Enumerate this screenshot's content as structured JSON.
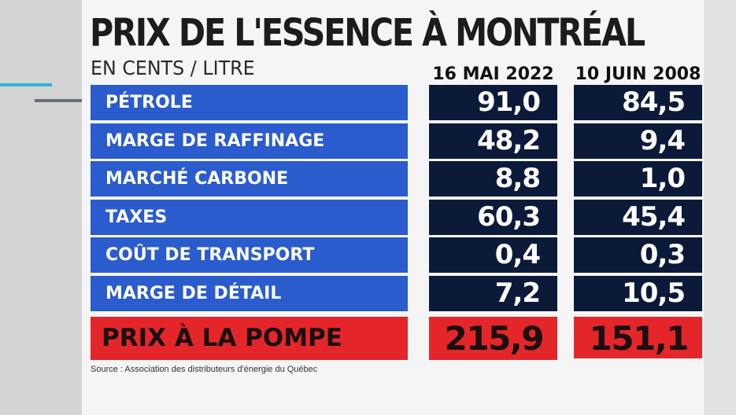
{
  "chart_data": {
    "type": "table",
    "title": "PRIX DE L'ESSENCE À MONTRÉAL",
    "subtitle": "EN CENTS / LITRE",
    "columns": [
      "16 MAI 2022",
      "10 JUIN 2008"
    ],
    "rows": [
      {
        "label": "PÉTROLE",
        "values": [
          "91,0",
          "84,5"
        ]
      },
      {
        "label": "MARGE DE RAFFINAGE",
        "values": [
          "48,2",
          "9,4"
        ]
      },
      {
        "label": "MARCHÉ CARBONE",
        "values": [
          "8,8",
          "1,0"
        ]
      },
      {
        "label": "TAXES",
        "values": [
          "60,3",
          "45,4"
        ]
      },
      {
        "label": "COÛT DE TRANSPORT",
        "values": [
          "0,4",
          "0,3"
        ]
      },
      {
        "label": "MARGE DE DÉTAIL",
        "values": [
          "7,2",
          "10,5"
        ]
      }
    ],
    "total": {
      "label": "PRIX À LA POMPE",
      "values": [
        "215,9",
        "151,1"
      ]
    },
    "source": "Source : Association des distributeurs d'énergie du Québec"
  },
  "colors": {
    "label_blue": "#2b5ccd",
    "value_navy": "#0c1a3a",
    "total_red": "#e4262b",
    "accent_cyan": "#2fb3d4"
  }
}
